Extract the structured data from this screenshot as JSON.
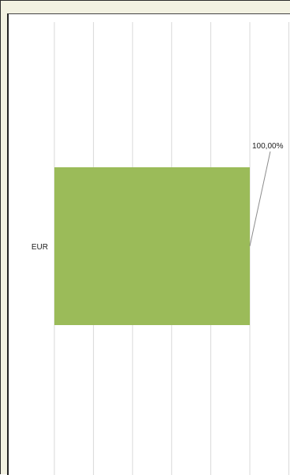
{
  "chart_data": {
    "type": "bar",
    "orientation": "horizontal",
    "categories": [
      "EUR"
    ],
    "series": [
      {
        "values": [
          100
        ],
        "data_labels": [
          "100,00%"
        ],
        "color": "#9bbb59"
      }
    ],
    "xlim": [
      0,
      100
    ],
    "x_gridlines": [
      0,
      20,
      40,
      60,
      80,
      100,
      120
    ],
    "grid": true,
    "legend": "none"
  },
  "colors": {
    "frame_background": "#f2f1e1",
    "plot_background": "#ffffff",
    "gridline": "#d9d9d9",
    "bar": "#9bbb59",
    "leader_line": "#8c8c8c"
  }
}
